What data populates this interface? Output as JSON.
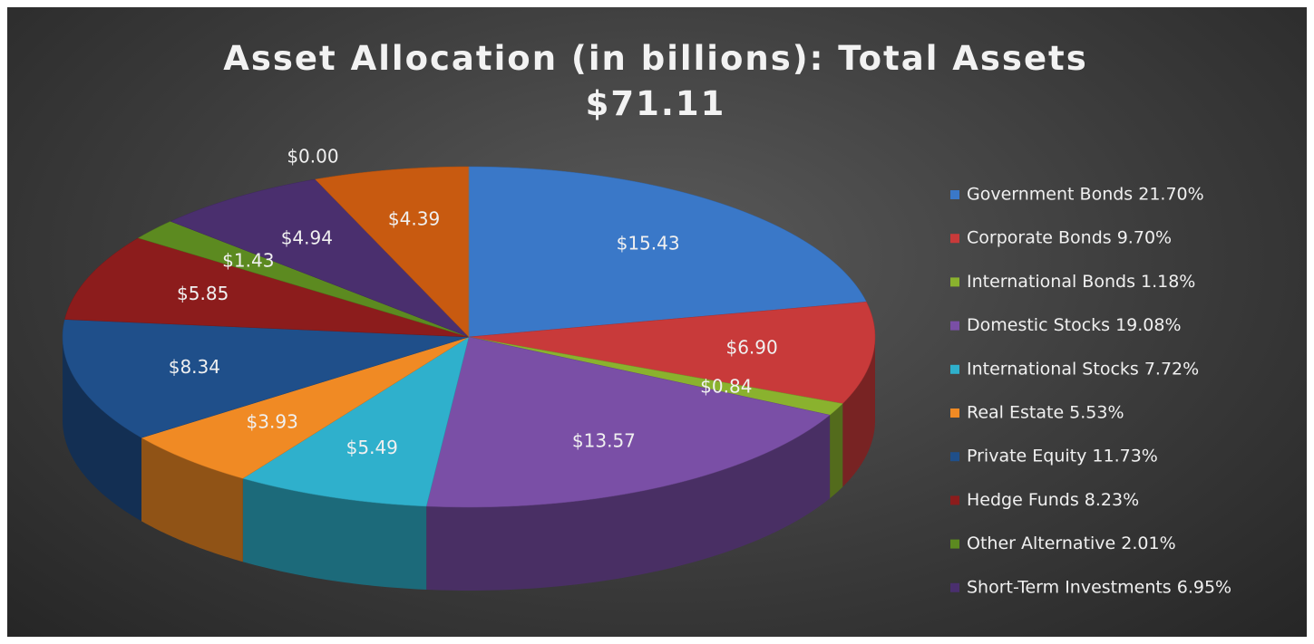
{
  "chart_data": {
    "type": "pie3d",
    "title": "Asset Allocation (in billions): Total Assets $71.11",
    "categories": [
      "Government Bonds 21.70%",
      "Corporate Bonds 9.70%",
      "International Bonds 1.18%",
      "Domestic Stocks 19.08%",
      "International Stocks 7.72%",
      "Real Estate 5.53%",
      "Private Equity 11.73%",
      "Hedge Funds 8.23%",
      "Other Alternative 2.01%",
      "Short-Term Investments 6.95%",
      null,
      null
    ],
    "values": [
      15.43,
      6.9,
      0.84,
      13.57,
      5.49,
      3.93,
      8.34,
      5.85,
      1.43,
      4.94,
      4.39,
      0.0
    ],
    "value_labels": [
      "$15.43",
      "$6.90",
      "$0.84",
      "$13.57",
      "$5.49",
      "$3.93",
      "$8.34",
      "$5.85",
      "$1.43",
      "$4.94",
      "$4.39",
      "$0.00"
    ],
    "colors": [
      "#3a78c8",
      "#c83a3a",
      "#8ab22e",
      "#7a4fa6",
      "#2fb0cc",
      "#f08a24",
      "#1f4f8a",
      "#8c1c1c",
      "#5c8a20",
      "#4a2f6e",
      "#c85a10",
      "#8a8a8a"
    ],
    "legend": "right"
  }
}
